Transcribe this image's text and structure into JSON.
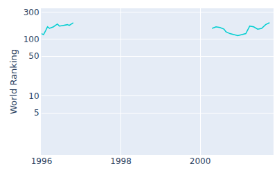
{
  "chart_data": {
    "type": "line",
    "y_label": "World Ranking",
    "x": [
      1996.0,
      1996.05,
      1996.1,
      1996.15,
      1996.2,
      1996.3,
      1996.4,
      1996.45,
      1996.55,
      1996.65,
      1996.7,
      1996.8,
      1998.5,
      2000.3,
      2000.4,
      2000.5,
      2000.6,
      2000.65,
      2000.75,
      2000.85,
      2000.95,
      2001.05,
      2001.15,
      2001.25,
      2001.35,
      2001.45,
      2001.55,
      2001.65,
      2001.75
    ],
    "values": [
      125,
      120,
      140,
      165,
      155,
      165,
      185,
      170,
      175,
      180,
      175,
      195,
      null,
      155,
      165,
      160,
      150,
      135,
      125,
      120,
      115,
      120,
      125,
      170,
      165,
      150,
      155,
      180,
      195
    ],
    "color": "#00ced1",
    "xlim": [
      1996,
      2001.85
    ],
    "xticks": [
      1996,
      1998,
      2000
    ],
    "ylim": [
      0.9,
      350
    ],
    "yticks": [
      5,
      10,
      50,
      100,
      300
    ],
    "log": "y",
    "grid": true
  }
}
